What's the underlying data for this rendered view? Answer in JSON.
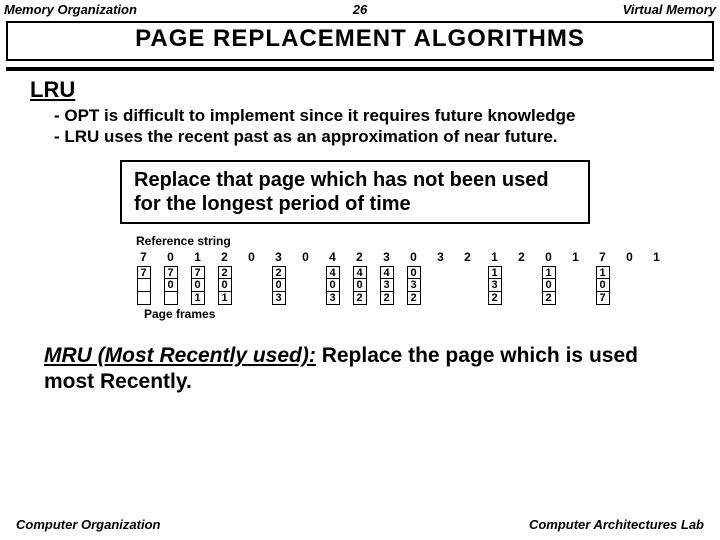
{
  "header": {
    "left": "Memory Organization",
    "page": "26",
    "right": "Virtual Memory"
  },
  "title": "PAGE  REPLACEMENT  ALGORITHMS",
  "section": "LRU",
  "bullet1": "- OPT is difficult to implement since it requires future knowledge",
  "bullet2": "- LRU uses the recent past as an approximation of near future.",
  "rule": "Replace that page which has not been used for the longest period of time",
  "refLabel": "Reference string",
  "refString": [
    "7",
    "0",
    "1",
    "2",
    "0",
    "3",
    "0",
    "4",
    "2",
    "3",
    "0",
    "3",
    "2",
    "1",
    "2",
    "0",
    "1",
    "7",
    "0",
    "1"
  ],
  "frames": [
    [
      "7",
      "",
      ""
    ],
    [
      "7",
      "0",
      ""
    ],
    [
      "7",
      "0",
      "1"
    ],
    [
      "2",
      "0",
      "1"
    ],
    null,
    [
      "2",
      "0",
      "3"
    ],
    null,
    [
      "4",
      "0",
      "3"
    ],
    [
      "4",
      "0",
      "2"
    ],
    [
      "4",
      "3",
      "2"
    ],
    [
      "0",
      "3",
      "2"
    ],
    null,
    null,
    [
      "1",
      "3",
      "2"
    ],
    null,
    [
      "1",
      "0",
      "2"
    ],
    null,
    [
      "1",
      "0",
      "7"
    ],
    null,
    null
  ],
  "pfLabel": "Page frames",
  "mruLabel": "MRU (Most Recently used):",
  "mruText": " Replace the page which is used most Recently.",
  "footer": {
    "left": "Computer Organization",
    "right": "Computer Architectures Lab"
  }
}
